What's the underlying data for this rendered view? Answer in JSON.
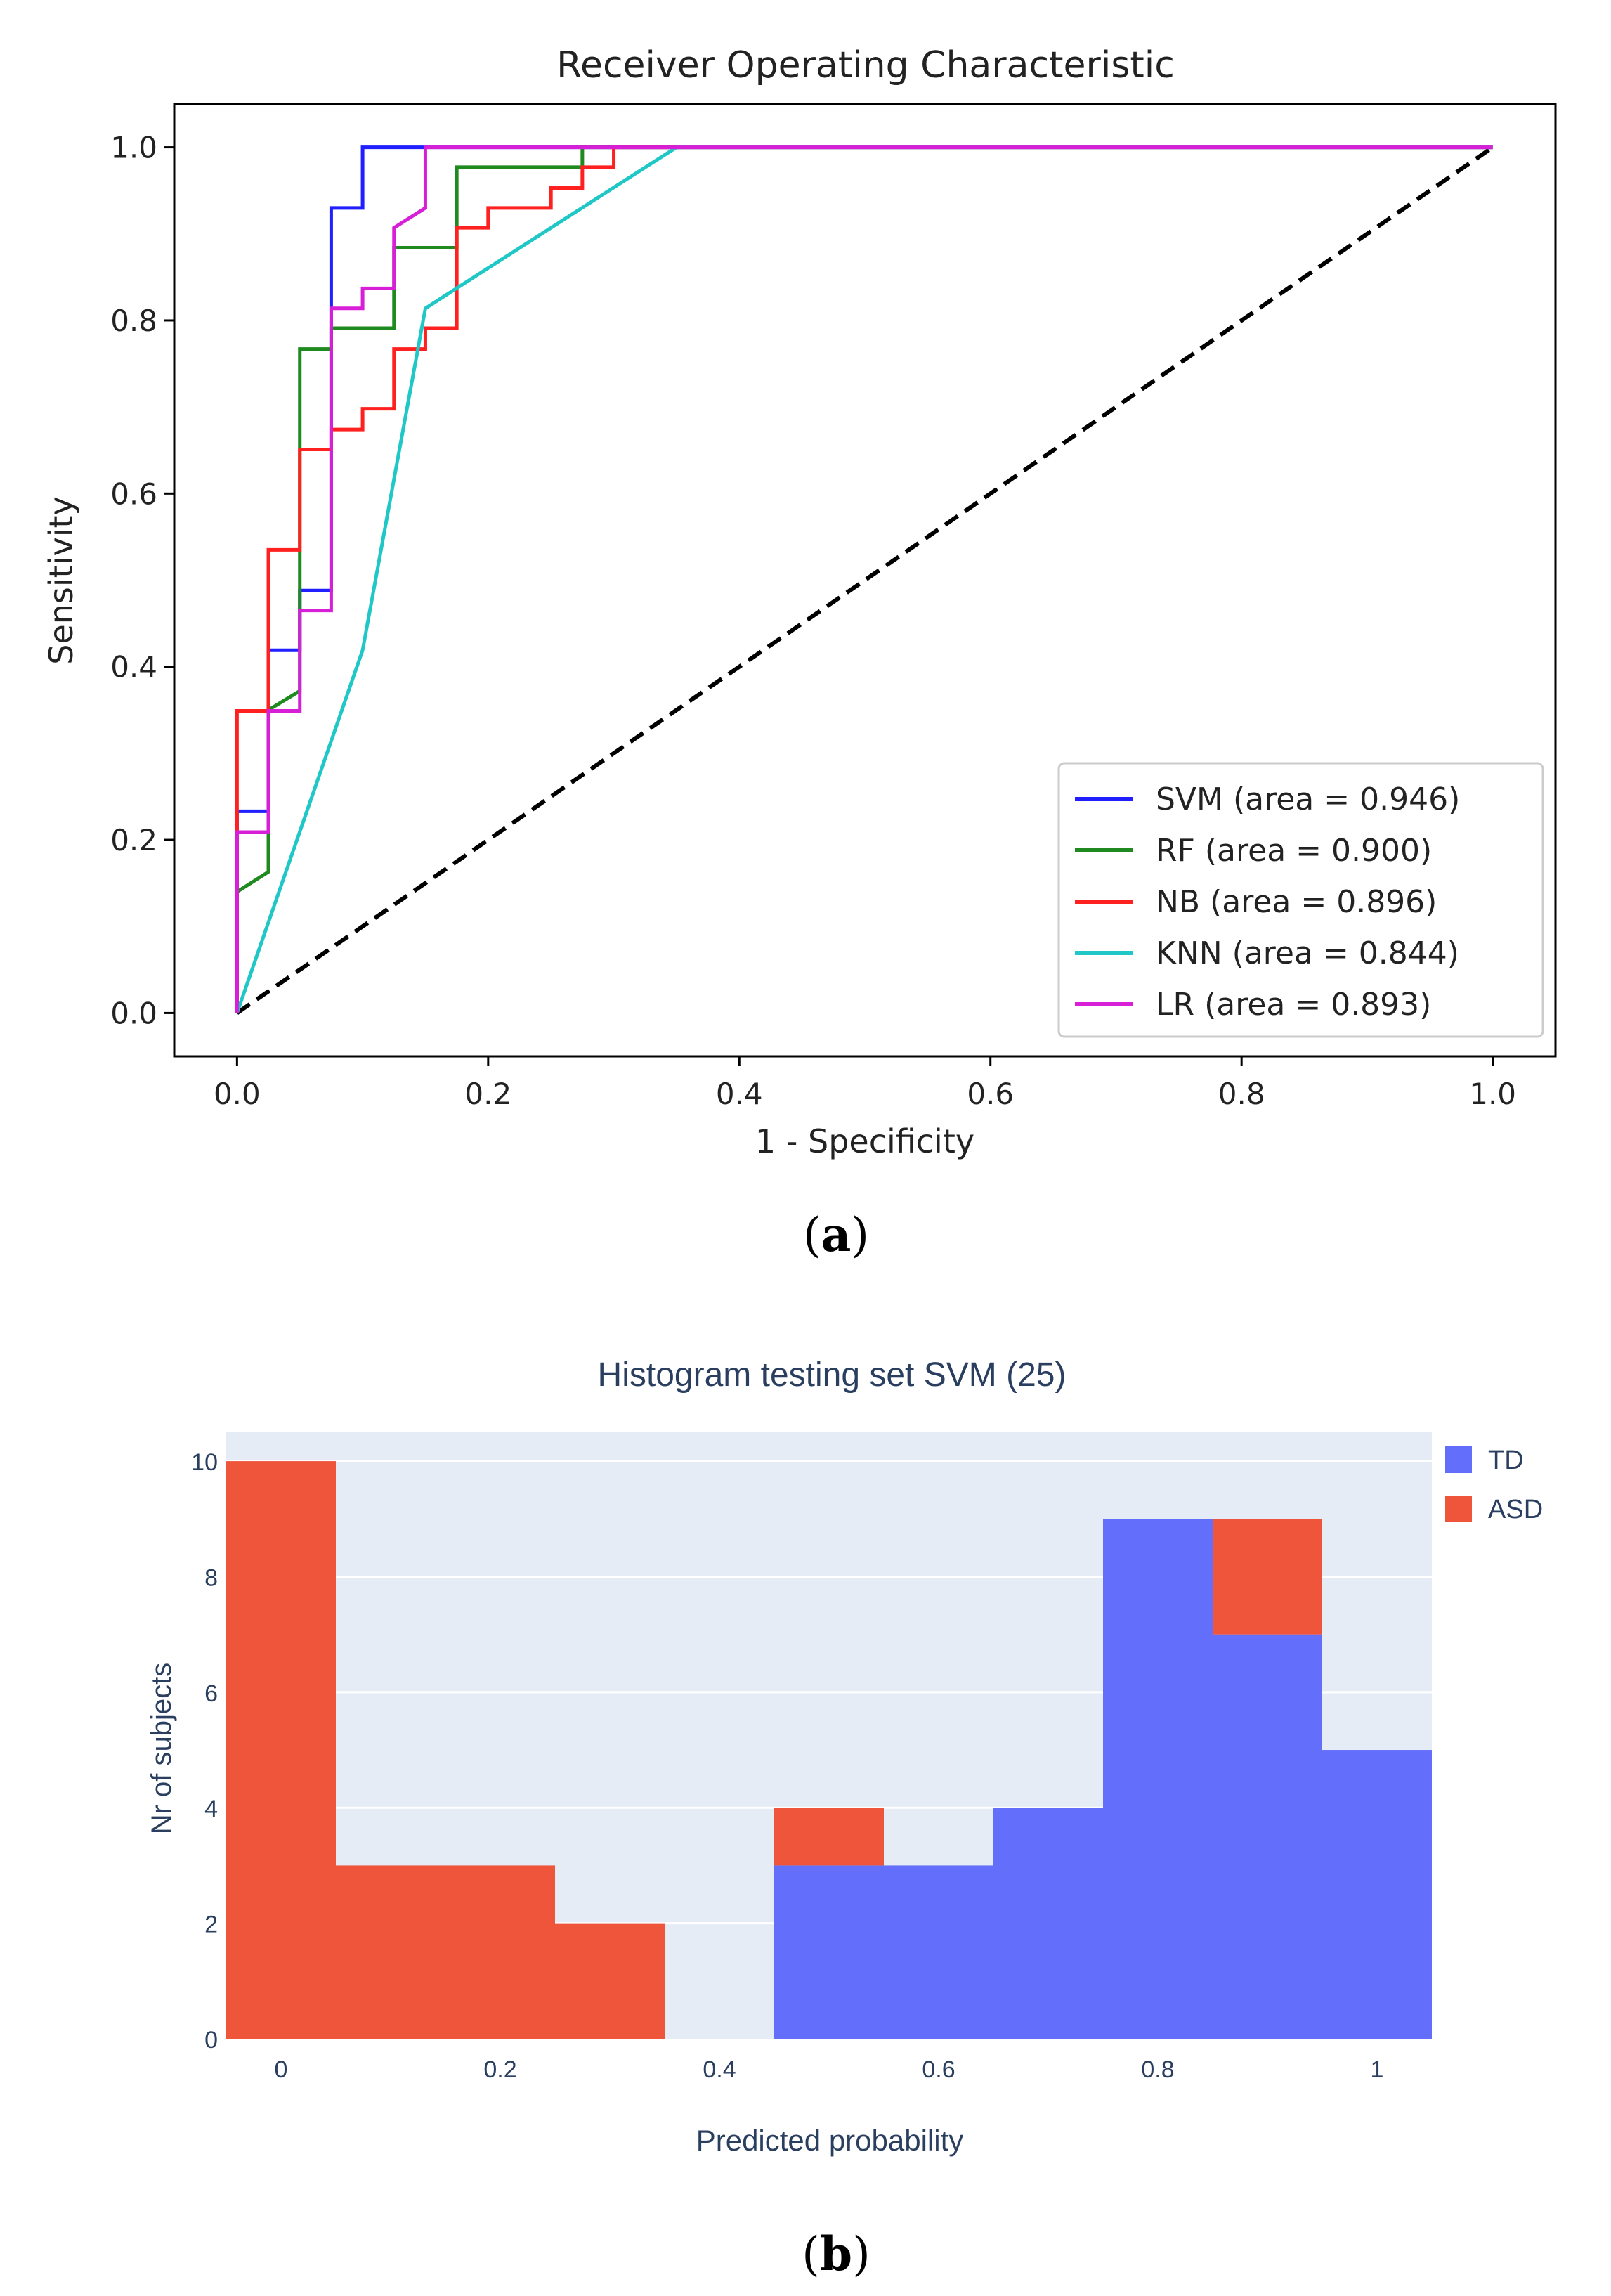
{
  "captions": {
    "a": "a",
    "b": "b"
  },
  "chart_data": [
    {
      "type": "line",
      "title": "Receiver Operating Characteristic",
      "xlabel": "1 - Specificity",
      "ylabel": "Sensitivity",
      "xlim": [
        -0.05,
        1.05
      ],
      "ylim": [
        -0.05,
        1.05
      ],
      "xticks": [
        0.0,
        0.2,
        0.4,
        0.6,
        0.8,
        1.0
      ],
      "yticks": [
        0.0,
        0.2,
        0.4,
        0.6,
        0.8,
        1.0
      ],
      "xtick_labels": [
        "0.0",
        "0.2",
        "0.4",
        "0.6",
        "0.8",
        "1.0"
      ],
      "ytick_labels": [
        "0.0",
        "0.2",
        "0.4",
        "0.6",
        "0.8",
        "1.0"
      ],
      "grid": false,
      "legend_position": "lower-right",
      "series": [
        {
          "name": "SVM (area = 0.946)",
          "color": "#1f1fff",
          "points": [
            [
              0,
              0
            ],
            [
              0,
              0.233
            ],
            [
              0.025,
              0.233
            ],
            [
              0.025,
              0.35
            ],
            [
              0.025,
              0.419
            ],
            [
              0.05,
              0.419
            ],
            [
              0.05,
              0.488
            ],
            [
              0.075,
              0.488
            ],
            [
              0.075,
              0.93
            ],
            [
              0.1,
              0.93
            ],
            [
              0.1,
              1.0
            ],
            [
              1.0,
              1.0
            ]
          ]
        },
        {
          "name": "RF (area = 0.900)",
          "color": "#1f8a1f",
          "points": [
            [
              0,
              0
            ],
            [
              0,
              0.14
            ],
            [
              0.025,
              0.163
            ],
            [
              0.025,
              0.35
            ],
            [
              0.05,
              0.372
            ],
            [
              0.05,
              0.767
            ],
            [
              0.075,
              0.767
            ],
            [
              0.075,
              0.791
            ],
            [
              0.125,
              0.791
            ],
            [
              0.125,
              0.884
            ],
            [
              0.175,
              0.884
            ],
            [
              0.175,
              0.977
            ],
            [
              0.275,
              0.977
            ],
            [
              0.275,
              1.0
            ],
            [
              1.0,
              1.0
            ]
          ]
        },
        {
          "name": "NB (area = 0.896)",
          "color": "#ff2020",
          "points": [
            [
              0,
              0
            ],
            [
              0,
              0.349
            ],
            [
              0.025,
              0.349
            ],
            [
              0.025,
              0.535
            ],
            [
              0.05,
              0.535
            ],
            [
              0.05,
              0.651
            ],
            [
              0.075,
              0.651
            ],
            [
              0.075,
              0.674
            ],
            [
              0.1,
              0.674
            ],
            [
              0.1,
              0.698
            ],
            [
              0.125,
              0.698
            ],
            [
              0.125,
              0.767
            ],
            [
              0.15,
              0.767
            ],
            [
              0.15,
              0.791
            ],
            [
              0.175,
              0.791
            ],
            [
              0.175,
              0.907
            ],
            [
              0.2,
              0.907
            ],
            [
              0.2,
              0.93
            ],
            [
              0.25,
              0.93
            ],
            [
              0.25,
              0.953
            ],
            [
              0.275,
              0.953
            ],
            [
              0.275,
              0.977
            ],
            [
              0.3,
              0.977
            ],
            [
              0.3,
              1.0
            ],
            [
              1.0,
              1.0
            ]
          ]
        },
        {
          "name": "KNN (area = 0.844)",
          "color": "#1fc7c7",
          "points": [
            [
              0,
              0
            ],
            [
              0.1,
              0.419
            ],
            [
              0.15,
              0.814
            ],
            [
              0.35,
              1.0
            ],
            [
              1.0,
              1.0
            ]
          ]
        },
        {
          "name": "LR (area = 0.893)",
          "color": "#d81fd8",
          "points": [
            [
              0,
              0
            ],
            [
              0,
              0.209
            ],
            [
              0.025,
              0.209
            ],
            [
              0.025,
              0.349
            ],
            [
              0.05,
              0.349
            ],
            [
              0.05,
              0.465
            ],
            [
              0.075,
              0.465
            ],
            [
              0.075,
              0.814
            ],
            [
              0.1,
              0.814
            ],
            [
              0.1,
              0.837
            ],
            [
              0.125,
              0.837
            ],
            [
              0.125,
              0.907
            ],
            [
              0.15,
              0.93
            ],
            [
              0.15,
              1.0
            ],
            [
              1.0,
              1.0
            ]
          ]
        }
      ],
      "reference_line": {
        "points": [
          [
            0,
            0
          ],
          [
            1,
            1
          ]
        ],
        "color": "#000000",
        "style": "dashed"
      }
    },
    {
      "type": "bar",
      "stacked": true,
      "title": "Histogram testing set SVM (25)",
      "xlabel": "Predicted probability",
      "ylabel": "Nr of subjects",
      "xlim": [
        -0.05,
        1.05
      ],
      "ylim": [
        0,
        10.5
      ],
      "xticks": [
        0,
        0.2,
        0.4,
        0.6,
        0.8,
        1
      ],
      "xtick_labels": [
        "0",
        "0.2",
        "0.4",
        "0.6",
        "0.8",
        "1"
      ],
      "yticks": [
        0,
        2,
        4,
        6,
        8,
        10
      ],
      "ytick_labels": [
        "0",
        "2",
        "4",
        "6",
        "8",
        "10"
      ],
      "bin_width": 0.1,
      "bin_centers": [
        0,
        0.1,
        0.2,
        0.3,
        0.4,
        0.5,
        0.6,
        0.7,
        0.8,
        0.9,
        1.0
      ],
      "background": "#e5ecf6",
      "legend_position": "top-right",
      "series": [
        {
          "name": "TD",
          "color": "#636efa",
          "values": [
            0,
            0,
            0,
            0,
            0,
            3,
            3,
            4,
            9,
            7,
            5
          ]
        },
        {
          "name": "ASD",
          "color": "#ef553b",
          "values": [
            10,
            3,
            3,
            2,
            0,
            1,
            0,
            0,
            0,
            2,
            0
          ]
        }
      ]
    }
  ]
}
